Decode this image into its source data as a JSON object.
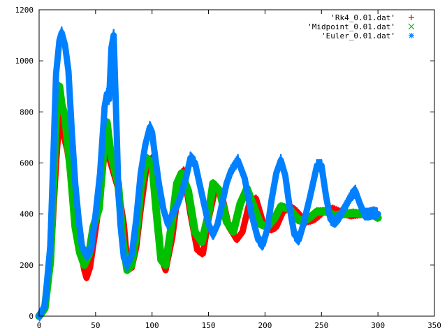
{
  "chart_data": {
    "type": "line",
    "title": "",
    "xlabel": "",
    "ylabel": "",
    "xlim": [
      0,
      350
    ],
    "ylim": [
      0,
      1200
    ],
    "x_ticks": [
      0,
      50,
      100,
      150,
      200,
      250,
      300,
      350
    ],
    "y_ticks": [
      0,
      200,
      400,
      600,
      800,
      1000,
      1200
    ],
    "x_tick_labels": [
      "0",
      "50",
      "100",
      "150",
      "200",
      "250",
      "300",
      "350"
    ],
    "y_tick_labels": [
      "0",
      "200",
      "400",
      "600",
      "800",
      "1000",
      "1200"
    ],
    "grid": false,
    "legend_position": "top-right",
    "series": [
      {
        "name": "'Rk4_0.01.dat'",
        "color": "#ff0000",
        "marker": "plus",
        "x": [
          0,
          5,
          10,
          15,
          18,
          21,
          25,
          30,
          35,
          40,
          42,
          45,
          50,
          55,
          58,
          62,
          66,
          70,
          75,
          78,
          82,
          86,
          90,
          95,
          100,
          104,
          108,
          112,
          118,
          124,
          128,
          134,
          140,
          145,
          150,
          156,
          162,
          168,
          175,
          180,
          186,
          192,
          198,
          205,
          210,
          216,
          222,
          228,
          236,
          244,
          252,
          260,
          268,
          276,
          284,
          292,
          300
        ],
        "y": [
          0,
          30,
          200,
          600,
          780,
          720,
          650,
          500,
          300,
          180,
          150,
          190,
          340,
          500,
          650,
          620,
          560,
          500,
          360,
          210,
          190,
          270,
          420,
          580,
          620,
          420,
          230,
          180,
          310,
          520,
          570,
          400,
          260,
          245,
          380,
          500,
          470,
          350,
          300,
          330,
          440,
          460,
          370,
          340,
          350,
          410,
          430,
          410,
          370,
          380,
          410,
          420,
          405,
          395,
          400,
          405,
          400
        ]
      },
      {
        "name": "'Midpoint_0.01.dat'",
        "color": "#00c000",
        "marker": "x",
        "x": [
          0,
          5,
          10,
          15,
          18,
          20,
          23,
          28,
          32,
          36,
          40,
          44,
          48,
          53,
          58,
          60,
          63,
          66,
          70,
          74,
          78,
          82,
          86,
          90,
          95,
          100,
          104,
          108,
          112,
          118,
          122,
          126,
          132,
          138,
          144,
          150,
          154,
          160,
          166,
          172,
          178,
          184,
          190,
          196,
          202,
          208,
          214,
          222,
          230,
          238,
          246,
          254,
          262,
          270,
          278,
          286,
          294,
          300
        ],
        "y": [
          0,
          30,
          220,
          780,
          900,
          830,
          780,
          560,
          350,
          250,
          200,
          240,
          350,
          420,
          700,
          760,
          650,
          590,
          520,
          300,
          180,
          200,
          320,
          500,
          620,
          600,
          400,
          220,
          200,
          380,
          520,
          560,
          490,
          330,
          290,
          400,
          520,
          490,
          370,
          330,
          440,
          500,
          430,
          360,
          350,
          380,
          430,
          420,
          375,
          380,
          410,
          410,
          395,
          400,
          405,
          400,
          400,
          385
        ]
      },
      {
        "name": "'Euler_0.01.dat'",
        "color": "#0080ff",
        "marker": "star",
        "x": [
          0,
          5,
          10,
          15,
          18,
          20,
          23,
          26,
          29,
          32,
          35,
          38,
          42,
          46,
          50,
          54,
          58,
          60,
          62,
          64,
          66,
          68,
          70,
          72,
          75,
          78,
          82,
          86,
          90,
          94,
          98,
          100,
          102,
          106,
          110,
          114,
          118,
          122,
          126,
          130,
          134,
          138,
          142,
          146,
          150,
          154,
          158,
          162,
          166,
          170,
          176,
          182,
          188,
          194,
          198,
          202,
          206,
          210,
          214,
          218,
          222,
          226,
          230,
          234,
          240,
          246,
          250,
          254,
          258,
          262,
          266,
          270,
          276,
          280,
          284,
          288,
          292,
          296,
          300
        ],
        "y": [
          0,
          40,
          280,
          950,
          1080,
          1110,
          1060,
          960,
          720,
          520,
          380,
          270,
          240,
          260,
          400,
          560,
          820,
          870,
          850,
          1050,
          1100,
          820,
          520,
          360,
          230,
          200,
          240,
          380,
          560,
          670,
          740,
          720,
          650,
          520,
          420,
          360,
          400,
          430,
          480,
          540,
          620,
          600,
          520,
          440,
          360,
          320,
          360,
          440,
          520,
          570,
          610,
          540,
          400,
          300,
          280,
          340,
          460,
          560,
          610,
          550,
          420,
          320,
          300,
          360,
          470,
          590,
          590,
          470,
          380,
          370,
          390,
          420,
          470,
          490,
          440,
          400,
          400,
          405,
          400
        ]
      }
    ]
  }
}
